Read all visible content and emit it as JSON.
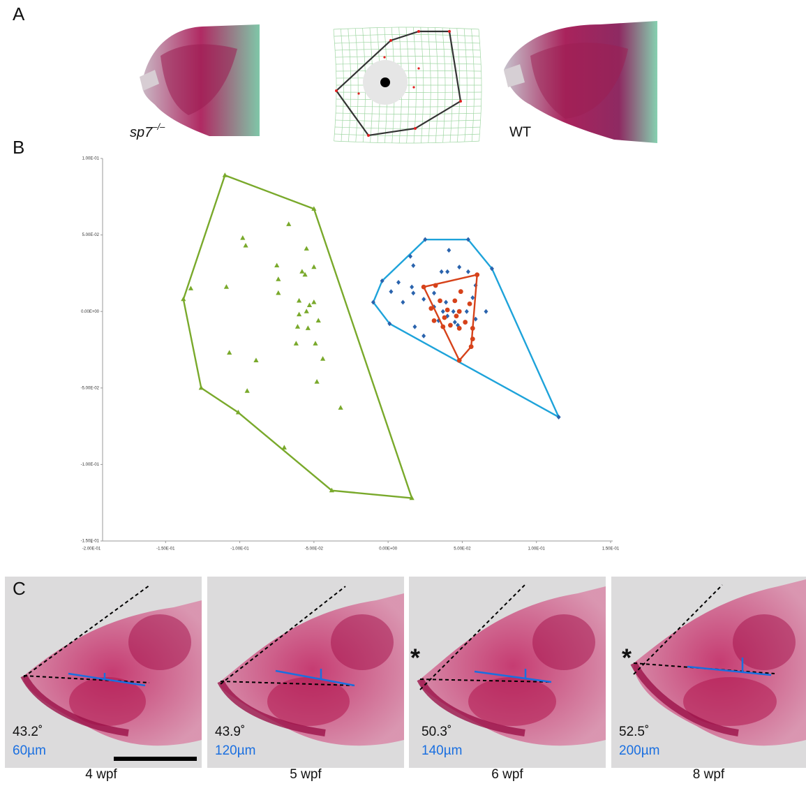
{
  "panel_labels": [
    "A",
    "B",
    "C"
  ],
  "panel_a": {
    "mutant_label": "sp7",
    "mutant_superscript": "–/–",
    "wt_label": "WT"
  },
  "chart_data": {
    "type": "scatter",
    "xlim": [
      -0.2,
      0.15
    ],
    "ylim": [
      -0.15,
      0.1
    ],
    "xticks": [
      {
        "value": -0.2,
        "label": "-2.00E-01"
      },
      {
        "value": -0.15,
        "label": "-1.50E-01"
      },
      {
        "value": -0.1,
        "label": "-1.00E-01"
      },
      {
        "value": -0.05,
        "label": "-5.00E-02"
      },
      {
        "value": 0,
        "label": "0.00E+00"
      },
      {
        "value": 0.05,
        "label": "5.00E-02"
      },
      {
        "value": 0.1,
        "label": "1.00E-01"
      },
      {
        "value": 0.15,
        "label": "1.50E-01"
      }
    ],
    "yticks": [
      {
        "value": 0.1,
        "label": "1.00E-01"
      },
      {
        "value": 0.05,
        "label": "5.00E-02"
      },
      {
        "value": 0,
        "label": "0.00E+00"
      },
      {
        "value": -0.05,
        "label": "-5.00E-02"
      },
      {
        "value": -0.1,
        "label": "-1.00E-01"
      },
      {
        "value": -0.15,
        "label": "-1.50E-01"
      }
    ],
    "series": [
      {
        "color": "#79a92b",
        "marker": "triangle",
        "x": [
          -0.067,
          -0.098,
          -0.096,
          -0.055,
          -0.075,
          -0.05,
          -0.058,
          -0.056,
          -0.074,
          -0.109,
          -0.074,
          -0.06,
          -0.05,
          -0.053,
          -0.055,
          -0.06,
          -0.047,
          -0.061,
          -0.054,
          -0.062,
          -0.049,
          -0.107,
          -0.089,
          -0.044,
          -0.095,
          -0.048,
          -0.032,
          -0.07,
          -0.133
        ],
        "y": [
          0.057,
          0.048,
          0.043,
          0.041,
          0.03,
          0.029,
          0.026,
          0.024,
          0.021,
          0.016,
          0.012,
          0.007,
          0.006,
          0.004,
          0.0,
          -0.002,
          -0.006,
          -0.01,
          -0.011,
          -0.021,
          -0.021,
          -0.027,
          -0.032,
          -0.031,
          -0.052,
          -0.046,
          -0.063,
          -0.089,
          0.015
        ],
        "hull": {
          "x": [
            -0.11,
            -0.05,
            0.016,
            -0.038,
            -0.101,
            -0.126,
            -0.138
          ],
          "y": [
            0.089,
            0.067,
            -0.122,
            -0.117,
            -0.066,
            -0.05,
            0.008
          ]
        }
      },
      {
        "color": "#2a63ad",
        "line_color": "#1ea3da",
        "marker": "diamond",
        "x": [
          0.041,
          0.015,
          0.017,
          0.048,
          0.036,
          0.04,
          0.054,
          0.007,
          0.016,
          0.059,
          0.002,
          0.017,
          0.031,
          0.024,
          0.01,
          0.057,
          0.039,
          0.031,
          0.037,
          0.044,
          0.053,
          0.066,
          0.04,
          0.034,
          0.045,
          0.059,
          0.018,
          0.024,
          0.047
        ],
        "y": [
          0.04,
          0.036,
          0.03,
          0.029,
          0.026,
          0.026,
          0.026,
          0.019,
          0.016,
          0.017,
          0.013,
          0.012,
          0.012,
          0.008,
          0.006,
          0.009,
          0.006,
          0.003,
          0.0,
          0.0,
          0.0,
          0.0,
          -0.003,
          -0.006,
          -0.007,
          -0.005,
          -0.01,
          -0.016,
          -0.009
        ],
        "hull": {
          "x": [
            -0.004,
            0.025,
            0.054,
            0.07,
            0.115,
            0.001,
            -0.01
          ],
          "y": [
            0.02,
            0.047,
            0.047,
            0.028,
            -0.069,
            -0.008,
            0.006
          ]
        }
      },
      {
        "color": "#d6421a",
        "marker": "circle",
        "x": [
          0.032,
          0.049,
          0.035,
          0.045,
          0.055,
          0.029,
          0.04,
          0.048,
          0.046,
          0.038,
          0.031,
          0.052,
          0.042,
          0.057,
          0.057,
          0.048,
          0.037
        ],
        "y": [
          0.017,
          0.013,
          0.007,
          0.007,
          0.005,
          0.002,
          0.001,
          0.0,
          -0.003,
          -0.004,
          -0.006,
          -0.007,
          -0.009,
          -0.011,
          -0.018,
          -0.011,
          -0.01
        ],
        "hull": {
          "x": [
            0.024,
            0.06,
            0.056,
            0.048
          ],
          "y": [
            0.016,
            0.024,
            -0.023,
            -0.032
          ]
        }
      }
    ]
  },
  "panel_c": {
    "images": [
      {
        "angle": "43.2˚",
        "length": "60µm",
        "stage": "4 wpf"
      },
      {
        "angle": "43.9˚",
        "length": "120µm",
        "stage": "5 wpf"
      },
      {
        "angle": "50.3˚",
        "length": "140µm",
        "stage": "6 wpf",
        "asterisk": "*"
      },
      {
        "angle": "52.5˚",
        "length": "200µm",
        "stage": "8 wpf",
        "asterisk": "*"
      }
    ]
  }
}
